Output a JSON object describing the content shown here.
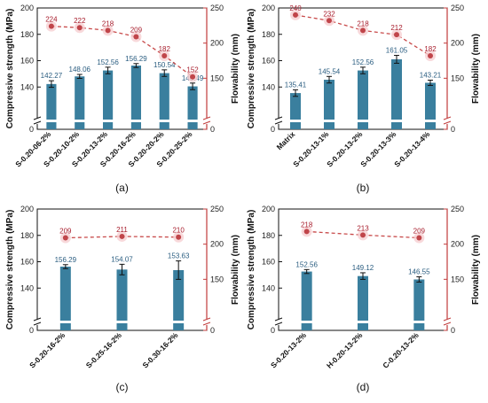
{
  "colors": {
    "bar": "#3a7f9e",
    "bar_label": "#2a5d80",
    "flow_line": "#c84a4a",
    "flow_marker": "#c0454a",
    "flow_halo": "#f6cfd2",
    "flow_label": "#a71d2c",
    "right_axis": "#c13b3b",
    "axis": "#111111"
  },
  "chart_data": [
    {
      "id": "panel-a",
      "panel_label": "(a)",
      "type": "bar",
      "ylabel": "Compressive strength (MPa)",
      "y2label": "Flowability (mm)",
      "ylim": [
        0,
        200
      ],
      "y2lim": [
        0,
        250
      ],
      "y_ticks": [
        0,
        140,
        160,
        180,
        200
      ],
      "y2_ticks": [
        0,
        150,
        200,
        250
      ],
      "axis_break": true,
      "categories": [
        "S-0.20-06-2%",
        "S-0.20-10-2%",
        "S-0.20-13-2%",
        "S-0.20-16-2%",
        "S-0.20-20-2%",
        "S-0.20-25-2%"
      ],
      "series": [
        {
          "values": [
            142.27,
            148.06,
            152.56,
            156.29,
            150.54,
            140.49
          ],
          "labels": [
            "142.27",
            "148.06",
            "152.56",
            "156.29",
            "150.54",
            "140.49"
          ],
          "errors": [
            2.5,
            1.5,
            2.5,
            1.5,
            2.5,
            2.5
          ]
        },
        {
          "values": [
            224,
            222,
            218,
            209,
            182,
            152
          ],
          "labels": [
            "224",
            "222",
            "218",
            "209",
            "182",
            "152"
          ]
        }
      ]
    },
    {
      "id": "panel-b",
      "panel_label": "(b)",
      "type": "bar",
      "ylabel": "Compressive strength (MPa)",
      "y2label": "Flowability (mm)",
      "ylim": [
        0,
        200
      ],
      "y2lim": [
        0,
        250
      ],
      "y_ticks": [
        0,
        140,
        160,
        180,
        200
      ],
      "y2_ticks": [
        0,
        150,
        200,
        250
      ],
      "axis_break": true,
      "categories": [
        "Matrix",
        "S-0.20-13-1%",
        "S-0.20-13-2%",
        "S-0.20-13-3%",
        "S-0.20-13-4%"
      ],
      "series": [
        {
          "values": [
            135.41,
            145.54,
            152.56,
            161.05,
            143.21
          ],
          "labels": [
            "135.41",
            "145.54",
            "152.56",
            "161.05",
            "143.21"
          ],
          "errors": [
            2.5,
            2.5,
            2.5,
            3,
            2
          ]
        },
        {
          "values": [
            240,
            232,
            218,
            212,
            182
          ],
          "labels": [
            "240",
            "232",
            "218",
            "212",
            "182"
          ]
        }
      ]
    },
    {
      "id": "panel-c",
      "panel_label": "(c)",
      "type": "bar",
      "ylabel": "Compressive strength (MPa)",
      "y2label": "Flowability (mm)",
      "ylim": [
        0,
        200
      ],
      "y2lim": [
        0,
        250
      ],
      "y_ticks": [
        0,
        140,
        160,
        180,
        200
      ],
      "y2_ticks": [
        0,
        150,
        200,
        250
      ],
      "axis_break": true,
      "categories": [
        "S-0.20-16-2%",
        "S-0.25-16-2%",
        "S-0.30-16-2%"
      ],
      "series": [
        {
          "values": [
            156.29,
            154.07,
            153.63
          ],
          "labels": [
            "156.29",
            "154.07",
            "153.63"
          ],
          "errors": [
            1.5,
            4,
            7
          ]
        },
        {
          "values": [
            209,
            211,
            210
          ],
          "labels": [
            "209",
            "211",
            "210"
          ]
        }
      ]
    },
    {
      "id": "panel-d",
      "panel_label": "(d)",
      "type": "bar",
      "ylabel": "Compressive strength (MPa)",
      "y2label": "Flowability (mm)",
      "ylim": [
        0,
        200
      ],
      "y2lim": [
        0,
        250
      ],
      "y_ticks": [
        0,
        140,
        160,
        180,
        200
      ],
      "y2_ticks": [
        0,
        150,
        200,
        250
      ],
      "axis_break": true,
      "categories": [
        "S-0.20-13-2%",
        "H-0.20-13-2%",
        "C-0.20-13-2%"
      ],
      "series": [
        {
          "values": [
            152.56,
            149.12,
            146.55
          ],
          "labels": [
            "152.56",
            "149.12",
            "146.55"
          ],
          "errors": [
            1.5,
            2.5,
            2
          ]
        },
        {
          "values": [
            218,
            213,
            209
          ],
          "labels": [
            "218",
            "213",
            "209"
          ]
        }
      ]
    }
  ]
}
